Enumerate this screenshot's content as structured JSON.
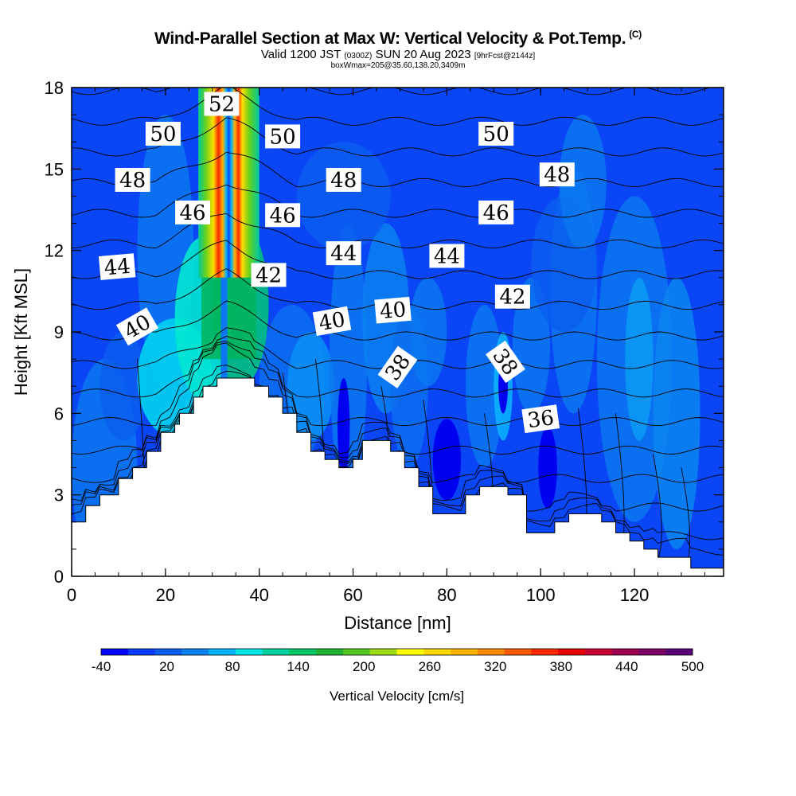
{
  "header": {
    "title": "Wind-Parallel Section at Max W: Vertical Velocity & Pot.Temp.",
    "copyright": "(C)",
    "valid_prefix": "Valid 1200 JST",
    "valid_utc": "(0300Z)",
    "valid_date": "SUN 20 Aug 2023",
    "forecast": "[9hrFcst@2144z]",
    "box_info": "boxWmax=205@35.60,138.20,3409m"
  },
  "chart_data": {
    "type": "heatmap",
    "title": "Wind-Parallel Section at Max W: Vertical Velocity & Pot.Temp.",
    "xlabel": "Distance [nm]",
    "ylabel": "Height [Kft MSL]",
    "xlim": [
      0,
      139
    ],
    "ylim": [
      0,
      18
    ],
    "x_ticks": [
      0,
      20,
      40,
      60,
      80,
      100,
      120
    ],
    "y_ticks": [
      0,
      3,
      6,
      9,
      12,
      15,
      18
    ],
    "colorbar": {
      "label": "Vertical Velocity [cm/s]",
      "range": [
        -40,
        500
      ],
      "tick_labels": [
        -40,
        20,
        80,
        140,
        200,
        260,
        320,
        380,
        440,
        500
      ],
      "colors": [
        "#0000ff",
        "#0a3cff",
        "#0a5ef0",
        "#0a82f0",
        "#00b4ff",
        "#00e6e6",
        "#00d2a0",
        "#00c864",
        "#1eb432",
        "#50c81e",
        "#a0dc14",
        "#ffff00",
        "#ffd700",
        "#ffb400",
        "#ff8c00",
        "#ff5a00",
        "#ff2800",
        "#e60000",
        "#c80032",
        "#a00050",
        "#7d0064",
        "#5a0078"
      ]
    },
    "terrain_profile_kft": [
      [
        0,
        2.0
      ],
      [
        3,
        2.0
      ],
      [
        3,
        2.6
      ],
      [
        6,
        2.6
      ],
      [
        6,
        3.0
      ],
      [
        10,
        3.0
      ],
      [
        10,
        3.6
      ],
      [
        13,
        3.6
      ],
      [
        13,
        4.0
      ],
      [
        16,
        4.0
      ],
      [
        16,
        4.6
      ],
      [
        19,
        4.6
      ],
      [
        19,
        5.3
      ],
      [
        22,
        5.3
      ],
      [
        22,
        5.6
      ],
      [
        23,
        5.6
      ],
      [
        23,
        6.0
      ],
      [
        26,
        6.0
      ],
      [
        26,
        6.6
      ],
      [
        28,
        6.6
      ],
      [
        28,
        7.0
      ],
      [
        31,
        7.0
      ],
      [
        31,
        7.3
      ],
      [
        39,
        7.3
      ],
      [
        39,
        7.0
      ],
      [
        42,
        7.0
      ],
      [
        42,
        6.6
      ],
      [
        45,
        6.6
      ],
      [
        45,
        6.0
      ],
      [
        48,
        6.0
      ],
      [
        48,
        5.3
      ],
      [
        51,
        5.3
      ],
      [
        51,
        4.6
      ],
      [
        54,
        4.6
      ],
      [
        54,
        4.3
      ],
      [
        57,
        4.3
      ],
      [
        57,
        4.0
      ],
      [
        60,
        4.0
      ],
      [
        60,
        4.3
      ],
      [
        62,
        4.3
      ],
      [
        62,
        5.0
      ],
      [
        68,
        5.0
      ],
      [
        68,
        4.6
      ],
      [
        71,
        4.6
      ],
      [
        71,
        4.0
      ],
      [
        74,
        4.0
      ],
      [
        74,
        3.3
      ],
      [
        77,
        3.3
      ],
      [
        77,
        2.3
      ],
      [
        84,
        2.3
      ],
      [
        84,
        3.0
      ],
      [
        87,
        3.0
      ],
      [
        87,
        3.3
      ],
      [
        93,
        3.3
      ],
      [
        93,
        3.0
      ],
      [
        97,
        3.0
      ],
      [
        97,
        1.6
      ],
      [
        103,
        1.6
      ],
      [
        103,
        2.0
      ],
      [
        106,
        2.0
      ],
      [
        106,
        2.3
      ],
      [
        113,
        2.3
      ],
      [
        113,
        2.0
      ],
      [
        116,
        2.0
      ],
      [
        116,
        1.6
      ],
      [
        119,
        1.6
      ],
      [
        119,
        1.3
      ],
      [
        122,
        1.3
      ],
      [
        122,
        1.0
      ],
      [
        125,
        1.0
      ],
      [
        125,
        0.7
      ],
      [
        132,
        0.7
      ],
      [
        132,
        0.3
      ],
      [
        139,
        0.3
      ]
    ],
    "updraft_core": {
      "x": [
        27,
        40
      ],
      "peak_x": 35,
      "peak_cm_s": 440
    },
    "theta_contours_C": [
      36,
      37,
      38,
      39,
      40,
      41,
      42,
      43,
      44,
      45,
      46,
      47,
      48,
      49,
      50,
      51,
      52
    ],
    "contour_labels": [
      {
        "text": "52",
        "x": 32.0,
        "y": 17.4,
        "rot": 0
      },
      {
        "text": "50",
        "x": 19.5,
        "y": 16.3,
        "rot": 0
      },
      {
        "text": "50",
        "x": 45.0,
        "y": 16.2,
        "rot": 0
      },
      {
        "text": "50",
        "x": 90.5,
        "y": 16.3,
        "rot": 0
      },
      {
        "text": "48",
        "x": 13.0,
        "y": 14.6,
        "rot": 0
      },
      {
        "text": "48",
        "x": 58.0,
        "y": 14.6,
        "rot": 0
      },
      {
        "text": "48",
        "x": 103.5,
        "y": 14.8,
        "rot": 0
      },
      {
        "text": "46",
        "x": 25.8,
        "y": 13.4,
        "rot": 0
      },
      {
        "text": "46",
        "x": 45.0,
        "y": 13.3,
        "rot": 0
      },
      {
        "text": "46",
        "x": 90.5,
        "y": 13.4,
        "rot": 0
      },
      {
        "text": "44",
        "x": 9.7,
        "y": 11.4,
        "rot": -5
      },
      {
        "text": "44",
        "x": 58.0,
        "y": 11.9,
        "rot": 0
      },
      {
        "text": "44",
        "x": 80.0,
        "y": 11.8,
        "rot": 0
      },
      {
        "text": "42",
        "x": 42.0,
        "y": 11.1,
        "rot": 0
      },
      {
        "text": "42",
        "x": 94.0,
        "y": 10.3,
        "rot": 0
      },
      {
        "text": "40",
        "x": 14.0,
        "y": 9.2,
        "rot": -30
      },
      {
        "text": "40",
        "x": 55.5,
        "y": 9.4,
        "rot": -10
      },
      {
        "text": "40",
        "x": 68.5,
        "y": 9.8,
        "rot": -5
      },
      {
        "text": "38",
        "x": 69.5,
        "y": 7.7,
        "rot": -55
      },
      {
        "text": "38",
        "x": 92.5,
        "y": 7.9,
        "rot": 55
      },
      {
        "text": "36",
        "x": 100.0,
        "y": 5.8,
        "rot": -8
      }
    ]
  }
}
